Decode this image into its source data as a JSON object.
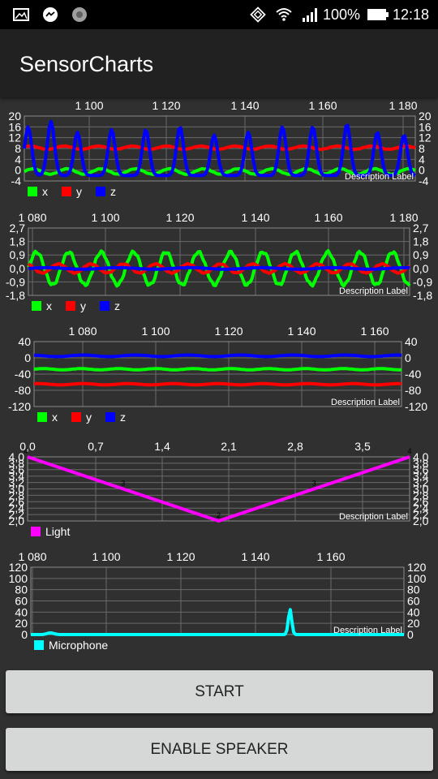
{
  "status_bar": {
    "battery_percent": "100%",
    "time": "12:18",
    "icons": [
      "gallery-icon",
      "messenger-icon",
      "aperture-icon",
      "nfc-icon",
      "wifi-icon",
      "signal-icon",
      "battery-icon"
    ]
  },
  "app": {
    "title": "SensorCharts"
  },
  "charts": [
    {
      "id": "accelerometer",
      "x_ticks": [
        "1 100",
        "1 120",
        "1 140",
        "1 160",
        "1 180"
      ],
      "y_ticks": [
        "20",
        "16",
        "12",
        "8",
        "4",
        "0",
        "-4"
      ],
      "description": "Description Label",
      "legend": [
        {
          "label": "x",
          "color": "#00ff00"
        },
        {
          "label": "y",
          "color": "#ff0000"
        },
        {
          "label": "z",
          "color": "#0000ff"
        }
      ]
    },
    {
      "id": "gyroscope",
      "x_ticks": [
        "1 080",
        "1 100",
        "1 120",
        "1 140",
        "1 160",
        "1 180"
      ],
      "y_ticks": [
        "2,7",
        "1,8",
        "0,9",
        "0,0",
        "-0,9",
        "-1,8"
      ],
      "description": "Description Label",
      "legend": [
        {
          "label": "x",
          "color": "#00ff00"
        },
        {
          "label": "y",
          "color": "#ff0000"
        },
        {
          "label": "z",
          "color": "#0000ff"
        }
      ]
    },
    {
      "id": "magnetometer",
      "x_ticks": [
        "1 080",
        "1 100",
        "1 120",
        "1 140",
        "1 160"
      ],
      "y_ticks": [
        "40",
        "0",
        "-40",
        "-80",
        "-120"
      ],
      "description": "Description Label",
      "legend": [
        {
          "label": "x",
          "color": "#00ff00"
        },
        {
          "label": "y",
          "color": "#ff0000"
        },
        {
          "label": "z",
          "color": "#0000ff"
        }
      ]
    },
    {
      "id": "light",
      "x_ticks": [
        "0,0",
        "0,7",
        "1,4",
        "2,1",
        "2,8",
        "3,5"
      ],
      "y_ticks": [
        "4,0",
        "3,8",
        "3,6",
        "3,4",
        "3,2",
        "3,0",
        "2,8",
        "2,6",
        "2,4",
        "2,2",
        "2,0"
      ],
      "description": "Description Label",
      "point_labels": [
        "4",
        "3",
        "2",
        "3",
        "4"
      ],
      "legend": [
        {
          "label": "Light",
          "color": "#ff00ff"
        }
      ]
    },
    {
      "id": "microphone",
      "x_ticks": [
        "1 080",
        "1 100",
        "1 120",
        "1 140",
        "1 160"
      ],
      "y_ticks": [
        "120",
        "100",
        "80",
        "60",
        "40",
        "20",
        "0"
      ],
      "description": "Description Label",
      "legend": [
        {
          "label": "Microphone",
          "color": "#00ffff"
        }
      ]
    }
  ],
  "chart_data": [
    {
      "type": "line",
      "x_range": [
        1083,
        1186
      ],
      "ylim": [
        -4,
        20
      ],
      "series": [
        {
          "name": "x",
          "color": "#00ff00",
          "kind": "wave",
          "base": -0.5,
          "amp": 1,
          "period": 9,
          "phase": 0
        },
        {
          "name": "y",
          "color": "#ff0000",
          "kind": "wave",
          "base": 8.3,
          "amp": 0.6,
          "period": 9,
          "phase": 0.5
        },
        {
          "name": "z",
          "color": "#0000ff",
          "kind": "peaks",
          "base": -2,
          "peaks": [
            1084,
            1090,
            1097,
            1106,
            1115,
            1124,
            1133,
            1142,
            1151,
            1159,
            1168,
            1176,
            1183
          ],
          "heights": [
            16,
            18,
            14,
            15,
            15,
            16,
            13,
            14,
            16,
            16,
            17,
            14,
            13
          ]
        }
      ],
      "grid": true
    },
    {
      "type": "line",
      "x_range": [
        1077,
        1183
      ],
      "ylim": [
        -1.8,
        2.7
      ],
      "series": [
        {
          "name": "x",
          "color": "#00ff00",
          "kind": "wave",
          "base": 0,
          "amp": 1.1,
          "period": 9,
          "phase": 0
        },
        {
          "name": "y",
          "color": "#ff0000",
          "kind": "wave",
          "base": 0,
          "amp": 0.3,
          "period": 9,
          "phase": 2
        },
        {
          "name": "z",
          "color": "#0000ff",
          "kind": "wave",
          "base": 0,
          "amp": 0.05,
          "period": 20,
          "phase": 0
        }
      ],
      "grid": true
    },
    {
      "type": "line",
      "x_range": [
        1072,
        1170
      ],
      "ylim": [
        -120,
        40
      ],
      "series": [
        {
          "name": "x",
          "color": "#00ff00",
          "kind": "wave",
          "base": -28,
          "amp": 1.5,
          "period": 10,
          "phase": 0
        },
        {
          "name": "y",
          "color": "#ff0000",
          "kind": "wave",
          "base": -65,
          "amp": 1.5,
          "period": 12,
          "phase": 1
        },
        {
          "name": "z",
          "color": "#0000ff",
          "kind": "wave",
          "base": 5,
          "amp": 2,
          "period": 14,
          "phase": 2
        }
      ],
      "grid": true
    },
    {
      "type": "line",
      "x_range": [
        0,
        4.0
      ],
      "ylim": [
        2.0,
        4.0
      ],
      "series": [
        {
          "name": "Light",
          "color": "#ff00ff",
          "kind": "points",
          "x": [
            0,
            1,
            2,
            3,
            4
          ],
          "y": [
            4,
            3,
            2,
            3,
            4
          ]
        }
      ],
      "grid": true
    },
    {
      "type": "line",
      "x_range": [
        1077,
        1172
      ],
      "ylim": [
        0,
        120
      ],
      "series": [
        {
          "name": "Microphone",
          "color": "#00ffff",
          "kind": "spike",
          "base": 0,
          "spike_x": 1143,
          "spike_h": 45,
          "bump_x": 1082,
          "bump_h": 3
        }
      ],
      "grid": true
    }
  ],
  "buttons": {
    "start_label": "START",
    "speaker_label": "ENABLE SPEAKER"
  }
}
